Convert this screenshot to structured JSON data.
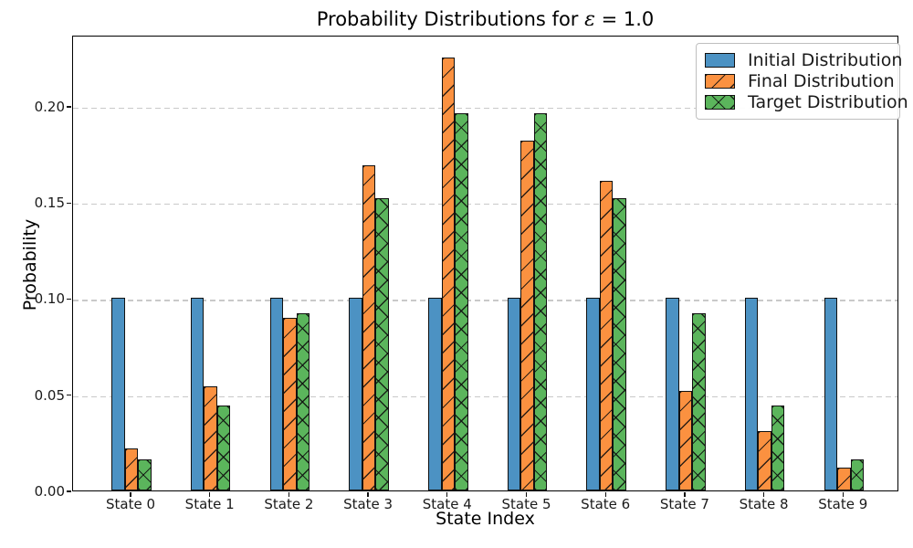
{
  "figure": {
    "title_prefix": "Probability Distributions for ",
    "title_epsilon": "ε",
    "title_suffix": " = 1.0",
    "xlabel": "State Index",
    "ylabel": "Probability"
  },
  "chart_data": {
    "type": "bar",
    "title": "Probability Distributions for ε = 1.0",
    "xlabel": "State Index",
    "ylabel": "Probability",
    "categories": [
      "State 0",
      "State 1",
      "State 2",
      "State 3",
      "State 4",
      "State 5",
      "State 6",
      "State 7",
      "State 8",
      "State 9"
    ],
    "series": [
      {
        "name": "Initial Distribution",
        "color": "#4C92C3",
        "edge_color": "#111111",
        "hatch": "none",
        "values": [
          0.1,
          0.1,
          0.1,
          0.1,
          0.1,
          0.1,
          0.1,
          0.1,
          0.1,
          0.1
        ]
      },
      {
        "name": "Final Distribution",
        "color": "#FB9140",
        "edge_color": "#111111",
        "hatch": "diagonal",
        "values": [
          0.022,
          0.054,
          0.09,
          0.169,
          0.225,
          0.182,
          0.161,
          0.052,
          0.031,
          0.012
        ]
      },
      {
        "name": "Target Distribution",
        "color": "#5BB55C",
        "edge_color": "#111111",
        "hatch": "cross",
        "values": [
          0.016,
          0.044,
          0.092,
          0.152,
          0.196,
          0.196,
          0.152,
          0.092,
          0.044,
          0.016
        ]
      }
    ],
    "ytick_labels": [
      "0.00",
      "0.05",
      "0.10",
      "0.15",
      "0.20"
    ],
    "ytick_values": [
      0,
      0.05,
      0.1,
      0.15,
      0.2
    ],
    "ylim": [
      0,
      0.237
    ],
    "grid": "horizontal-dashed",
    "grid_color": "#c9c9c9",
    "legend_position": "upper-right"
  }
}
